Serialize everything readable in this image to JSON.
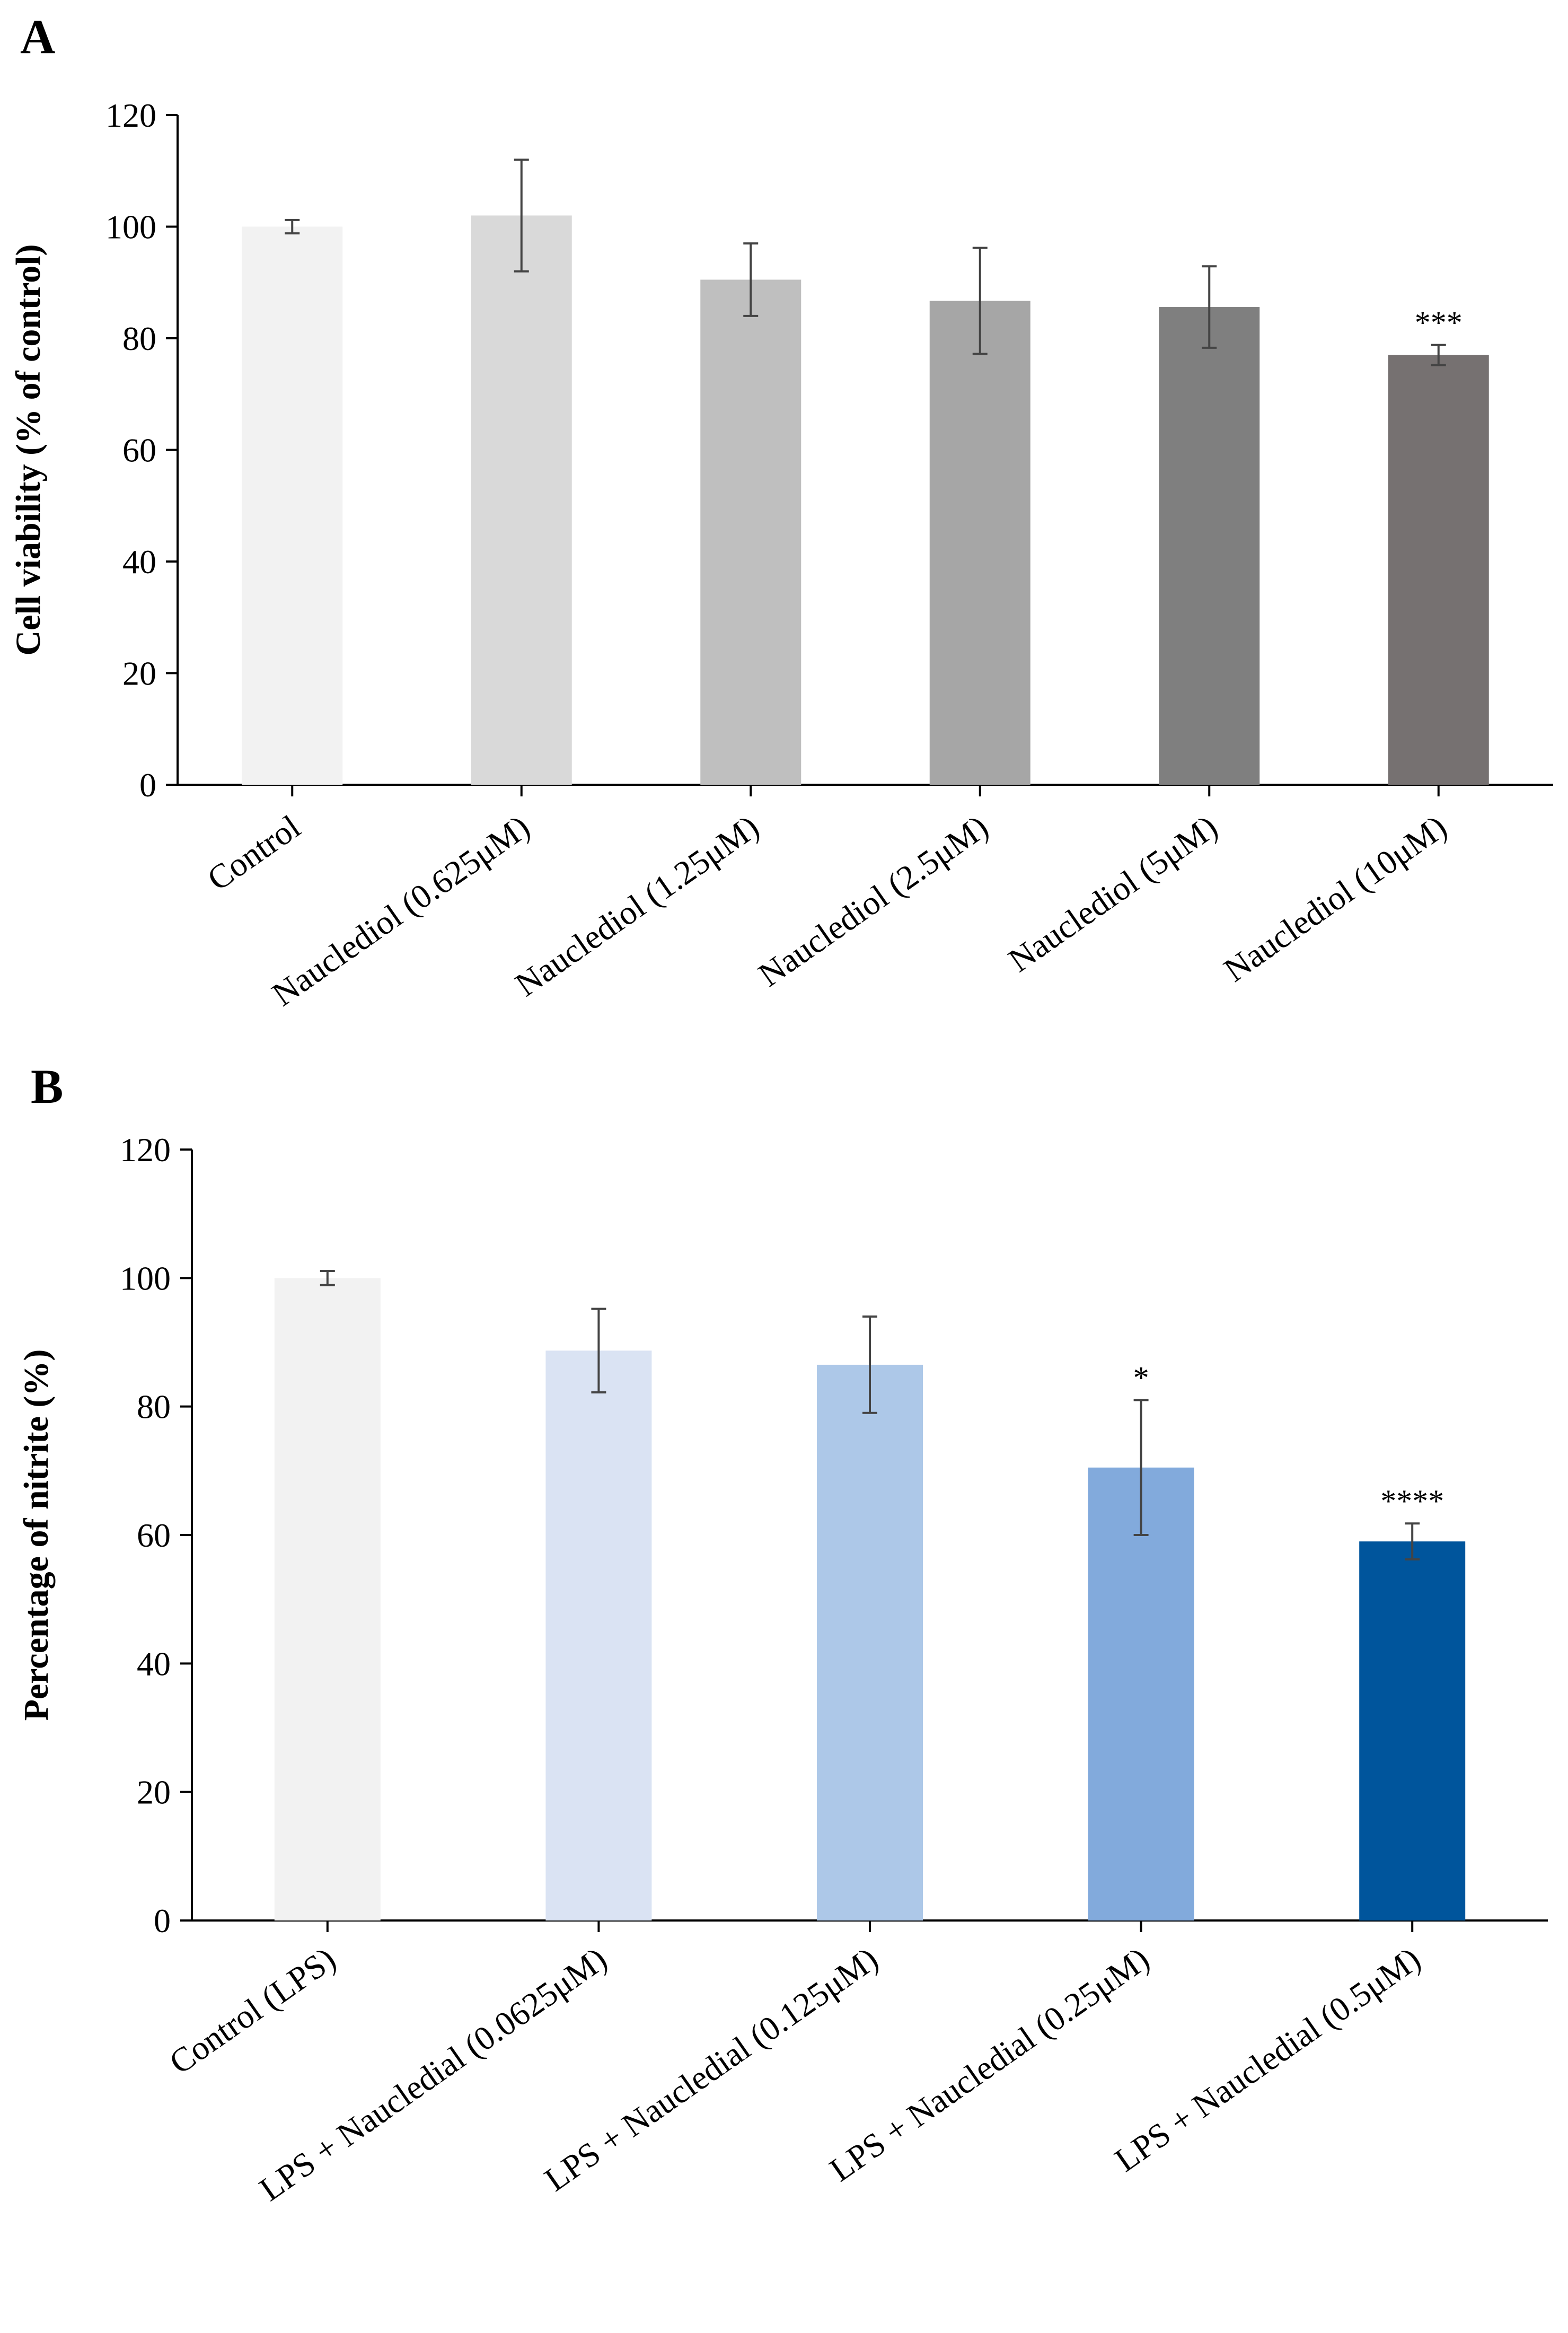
{
  "chart_data": [
    {
      "panel": "A",
      "type": "bar",
      "title": "",
      "xlabel": "",
      "ylabel": "Cell viability (% of control)",
      "ylim": [
        0,
        120
      ],
      "yticks": [
        0,
        20,
        40,
        60,
        80,
        100,
        120
      ],
      "grid": false,
      "categories": [
        "Control",
        "Nauclediol (0.625μM)",
        "Nauclediol (1.25μM)",
        "Nauclediol (2.5μM)",
        "Nauclediol (5μM)",
        "Nauclediol (10μM)"
      ],
      "values": [
        100,
        102,
        90.5,
        86.7,
        85.6,
        77
      ],
      "errors": [
        1.2,
        10,
        6.5,
        9.5,
        7.3,
        1.8
      ],
      "significance": [
        "",
        "",
        "",
        "",
        "",
        "***"
      ],
      "colors": [
        "#f2f2f2",
        "#d9d9d9",
        "#bfbfbf",
        "#a6a6a6",
        "#7f7f7f",
        "#767171"
      ]
    },
    {
      "panel": "B",
      "type": "bar",
      "title": "",
      "xlabel": "",
      "ylabel": "Percentage of nitrite (%)",
      "ylim": [
        0,
        120
      ],
      "yticks": [
        0,
        20,
        40,
        60,
        80,
        100,
        120
      ],
      "grid": false,
      "categories": [
        "Control (LPS)",
        "LPS + Naucledial (0.0625μM)",
        "LPS + Naucledial (0.125μM)",
        "LPS + Naucledial (0.25μM)",
        "LPS + Naucledial (0.5μM)"
      ],
      "values": [
        100,
        88.7,
        86.5,
        70.5,
        59
      ],
      "errors": [
        1.1,
        6.5,
        7.5,
        10.5,
        2.8
      ],
      "significance": [
        "",
        "",
        "",
        "*",
        "****"
      ],
      "colors": [
        "#f2f2f2",
        "#dae3f3",
        "#adc8e8",
        "#82aadc",
        "#00559c"
      ]
    }
  ]
}
